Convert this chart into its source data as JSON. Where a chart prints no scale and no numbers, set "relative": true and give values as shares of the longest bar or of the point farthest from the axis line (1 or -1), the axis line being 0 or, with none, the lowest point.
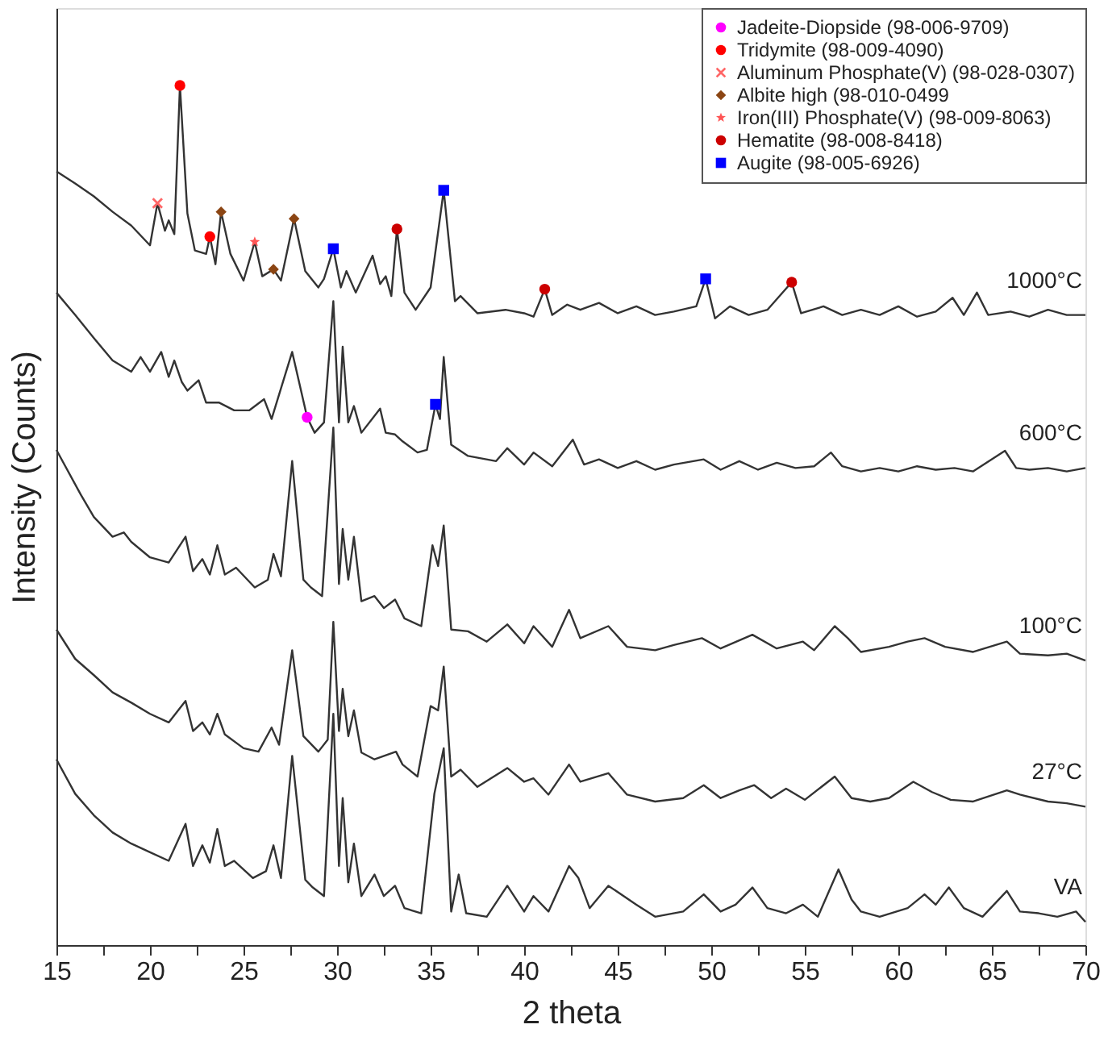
{
  "chart_data": {
    "type": "line",
    "relative": true,
    "xlabel": "2 theta",
    "ylabel": "Intensity (Counts)",
    "xlim": [
      15,
      70
    ],
    "xticks": [
      15,
      {
        "value": 17.5,
        "label": null
      },
      20,
      {
        "value": 22.5,
        "label": null
      },
      25,
      {
        "value": 27.5,
        "label": null
      },
      30,
      {
        "value": 32.5,
        "label": null
      },
      35,
      {
        "value": 37.5,
        "label": null
      },
      40,
      {
        "value": 42.5,
        "label": null
      },
      45,
      {
        "value": 47.5,
        "label": null
      },
      50,
      {
        "value": 52.5,
        "label": null
      },
      55,
      {
        "value": 57.5,
        "label": null
      },
      60,
      {
        "value": 62.5,
        "label": null
      },
      65,
      {
        "value": 67.5,
        "label": null
      },
      70
    ],
    "grid": false,
    "legend": "top right",
    "line_style": "solid",
    "series": [
      {
        "name": "1000°C",
        "color": "#333333",
        "marker": "none",
        "x": [
          15,
          16,
          17,
          18,
          19,
          20,
          20.4,
          20.8,
          21.0,
          21.3,
          21.6,
          22.0,
          22.4,
          23.0,
          23.2,
          23.5,
          23.8,
          24.3,
          25,
          25.6,
          26.0,
          26.6,
          27,
          27.7,
          28.3,
          29,
          29.3,
          29.8,
          30.2,
          30.5,
          31,
          31.9,
          32.3,
          32.6,
          32.9,
          33.2,
          33.6,
          34.2,
          35,
          35.7,
          36.3,
          36.6,
          37.5,
          39,
          40,
          40.5,
          41.1,
          41.5,
          42.3,
          43,
          44,
          45,
          46,
          47,
          48,
          49.2,
          49.7,
          50.2,
          51,
          52,
          53,
          54.3,
          54.8,
          56,
          57,
          58,
          59,
          60,
          61,
          62,
          62.9,
          63.5,
          64.2,
          64.8,
          66,
          67,
          68,
          69,
          70
        ],
        "values": [
          0.9,
          0.886,
          0.871,
          0.853,
          0.837,
          0.814,
          0.863,
          0.831,
          0.843,
          0.827,
          1.0,
          0.851,
          0.808,
          0.804,
          0.824,
          0.792,
          0.853,
          0.804,
          0.773,
          0.818,
          0.778,
          0.786,
          0.773,
          0.845,
          0.784,
          0.765,
          0.775,
          0.81,
          0.765,
          0.784,
          0.759,
          0.802,
          0.769,
          0.778,
          0.755,
          0.833,
          0.759,
          0.739,
          0.765,
          0.878,
          0.749,
          0.755,
          0.735,
          0.739,
          0.735,
          0.731,
          0.763,
          0.733,
          0.745,
          0.739,
          0.747,
          0.735,
          0.743,
          0.733,
          0.737,
          0.743,
          0.775,
          0.729,
          0.743,
          0.733,
          0.739,
          0.771,
          0.735,
          0.743,
          0.733,
          0.739,
          0.733,
          0.743,
          0.731,
          0.737,
          0.753,
          0.733,
          0.759,
          0.733,
          0.737,
          0.731,
          0.739,
          0.733,
          0.733
        ]
      },
      {
        "name": "600°C",
        "color": "#333333",
        "marker": "none",
        "x": [
          15,
          16,
          17,
          18,
          19,
          19.5,
          20,
          20.6,
          21,
          21.3,
          21.7,
          22,
          22.6,
          23,
          23.7,
          24.5,
          25.3,
          26.1,
          26.5,
          27.6,
          28.4,
          28.8,
          29.3,
          29.8,
          30.1,
          30.3,
          30.6,
          30.9,
          31.3,
          32.3,
          32.6,
          33.1,
          33.5,
          34.3,
          34.8,
          35.26,
          35.5,
          35.7,
          36.1,
          37,
          38.5,
          39.1,
          40,
          40.5,
          41.5,
          42.6,
          43.2,
          44,
          45,
          46,
          47,
          48,
          49.6,
          50.5,
          51.5,
          52.5,
          53.5,
          54.5,
          55.5,
          56.4,
          57,
          58,
          59,
          60,
          61,
          62,
          63,
          64,
          65.7,
          66.3,
          67,
          68,
          69,
          70
        ],
        "values": [
          0.759,
          0.733,
          0.706,
          0.68,
          0.667,
          0.684,
          0.667,
          0.69,
          0.661,
          0.68,
          0.655,
          0.645,
          0.657,
          0.631,
          0.631,
          0.622,
          0.622,
          0.635,
          0.612,
          0.69,
          0.614,
          0.596,
          0.608,
          0.749,
          0.608,
          0.696,
          0.608,
          0.627,
          0.596,
          0.624,
          0.596,
          0.594,
          0.586,
          0.573,
          0.576,
          0.629,
          0.612,
          0.684,
          0.582,
          0.569,
          0.563,
          0.578,
          0.559,
          0.573,
          0.557,
          0.588,
          0.559,
          0.565,
          0.555,
          0.563,
          0.553,
          0.559,
          0.565,
          0.553,
          0.563,
          0.553,
          0.561,
          0.555,
          0.557,
          0.573,
          0.557,
          0.551,
          0.555,
          0.551,
          0.557,
          0.553,
          0.555,
          0.551,
          0.575,
          0.555,
          0.553,
          0.555,
          0.551,
          0.555
        ]
      },
      {
        "name": "100°C",
        "color": "#333333",
        "marker": "none",
        "x": [
          15,
          16.3,
          17,
          18,
          18.6,
          19,
          20,
          21,
          21.9,
          22.3,
          22.8,
          23.2,
          23.6,
          24,
          24.6,
          25.6,
          26.3,
          26.6,
          27,
          27.6,
          28.2,
          28.6,
          29.2,
          29.8,
          30.1,
          30.3,
          30.6,
          30.9,
          31.3,
          32,
          32.5,
          33.1,
          33.6,
          34.5,
          35.1,
          35.4,
          35.7,
          36.1,
          37,
          38,
          39.1,
          40,
          40.5,
          41.5,
          42.4,
          43,
          44.5,
          45.5,
          47,
          48,
          49.5,
          50.5,
          52.2,
          53.5,
          54.9,
          55.5,
          56.6,
          57.3,
          58,
          59.5,
          60.5,
          61.4,
          62.5,
          64,
          65.8,
          66.5,
          68,
          69,
          70
        ],
        "values": [
          0.576,
          0.524,
          0.498,
          0.475,
          0.48,
          0.469,
          0.451,
          0.445,
          0.475,
          0.435,
          0.449,
          0.431,
          0.465,
          0.431,
          0.439,
          0.416,
          0.425,
          0.455,
          0.429,
          0.563,
          0.425,
          0.416,
          0.406,
          0.602,
          0.42,
          0.484,
          0.425,
          0.475,
          0.4,
          0.406,
          0.392,
          0.402,
          0.38,
          0.371,
          0.465,
          0.441,
          0.488,
          0.367,
          0.365,
          0.353,
          0.373,
          0.351,
          0.371,
          0.347,
          0.39,
          0.357,
          0.371,
          0.347,
          0.343,
          0.349,
          0.357,
          0.345,
          0.361,
          0.345,
          0.353,
          0.343,
          0.371,
          0.357,
          0.341,
          0.347,
          0.353,
          0.357,
          0.347,
          0.341,
          0.353,
          0.339,
          0.337,
          0.339,
          0.331
        ]
      },
      {
        "name": "27°C",
        "color": "#333333",
        "marker": "none",
        "x": [
          15,
          16,
          17,
          18,
          19,
          20,
          21,
          21.9,
          22.3,
          22.8,
          23.2,
          23.6,
          24,
          25,
          25.8,
          26.5,
          26.9,
          27.6,
          28.2,
          29,
          29.5,
          29.8,
          30.1,
          30.3,
          30.6,
          30.9,
          31.3,
          32,
          33.15,
          33.5,
          34.3,
          35,
          35.4,
          35.7,
          36.1,
          36.6,
          37.5,
          39.1,
          40,
          40.5,
          41.3,
          42.4,
          43,
          44.5,
          45.5,
          47,
          48.5,
          49.6,
          50.5,
          51.5,
          52.3,
          53.2,
          54,
          55,
          56.6,
          57.5,
          58.5,
          59.5,
          60.8,
          61.8,
          62.8,
          64,
          65.8,
          66.5,
          68,
          69,
          70
        ],
        "values": [
          0.367,
          0.333,
          0.314,
          0.294,
          0.282,
          0.269,
          0.259,
          0.284,
          0.249,
          0.259,
          0.245,
          0.269,
          0.245,
          0.229,
          0.225,
          0.253,
          0.233,
          0.343,
          0.243,
          0.225,
          0.239,
          0.376,
          0.249,
          0.298,
          0.243,
          0.273,
          0.224,
          0.216,
          0.225,
          0.21,
          0.196,
          0.278,
          0.273,
          0.324,
          0.196,
          0.204,
          0.184,
          0.206,
          0.19,
          0.194,
          0.175,
          0.21,
          0.19,
          0.2,
          0.175,
          0.167,
          0.171,
          0.186,
          0.171,
          0.18,
          0.186,
          0.171,
          0.182,
          0.169,
          0.196,
          0.171,
          0.167,
          0.171,
          0.19,
          0.178,
          0.169,
          0.167,
          0.18,
          0.175,
          0.167,
          0.165,
          0.161
        ]
      },
      {
        "name": "VA",
        "color": "#333333",
        "marker": "none",
        "x": [
          15,
          16,
          17,
          18,
          19,
          20,
          21,
          21.9,
          22.3,
          22.8,
          23.2,
          23.6,
          24,
          24.5,
          25.5,
          26.2,
          26.6,
          27,
          27.6,
          28.3,
          28.7,
          29.3,
          29.8,
          30.1,
          30.3,
          30.6,
          30.9,
          31.3,
          32,
          32.5,
          33.1,
          33.6,
          34.5,
          35.2,
          35.7,
          36.1,
          36.5,
          36.9,
          38,
          39.1,
          40,
          40.5,
          41.3,
          42.4,
          42.9,
          43.5,
          44.5,
          46,
          47,
          48.5,
          49.6,
          50.5,
          51.3,
          52.2,
          53,
          54,
          54.9,
          55.7,
          56.8,
          57.5,
          58,
          59,
          60.5,
          61.4,
          62,
          62.7,
          63.5,
          64.5,
          65.8,
          66.5,
          67.5,
          68.5,
          69.5,
          70
        ],
        "values": [
          0.216,
          0.176,
          0.151,
          0.131,
          0.118,
          0.108,
          0.098,
          0.141,
          0.092,
          0.116,
          0.096,
          0.135,
          0.092,
          0.098,
          0.078,
          0.086,
          0.116,
          0.078,
          0.22,
          0.076,
          0.067,
          0.057,
          0.269,
          0.092,
          0.171,
          0.073,
          0.118,
          0.057,
          0.082,
          0.057,
          0.069,
          0.043,
          0.037,
          0.176,
          0.229,
          0.039,
          0.082,
          0.037,
          0.033,
          0.069,
          0.039,
          0.057,
          0.039,
          0.092,
          0.078,
          0.043,
          0.069,
          0.047,
          0.033,
          0.039,
          0.059,
          0.039,
          0.047,
          0.067,
          0.043,
          0.037,
          0.047,
          0.033,
          0.088,
          0.053,
          0.039,
          0.033,
          0.043,
          0.059,
          0.047,
          0.067,
          0.043,
          0.033,
          0.063,
          0.039,
          0.037,
          0.033,
          0.039,
          0.027
        ]
      },
      {
        "name": "Jadeite-Diopside (98-006-9709)",
        "type": "scatter",
        "color": "#ff00ff",
        "marker": "circle",
        "x": [
          28.4
        ],
        "values": [
          0.614
        ]
      },
      {
        "name": "Tridymite (98-009-4090)",
        "type": "scatter",
        "color": "#ff0000",
        "marker": "circle",
        "x": [
          21.6,
          23.2
        ],
        "values": [
          1.0,
          0.824
        ]
      },
      {
        "name": "Aluminum Phosphate(V) (98-028-0307)",
        "type": "scatter",
        "color": "#ff6666",
        "marker": "cross",
        "x": [
          20.4
        ],
        "values": [
          0.863
        ]
      },
      {
        "name": "Albite high (98-010-0499",
        "type": "scatter",
        "color": "#8b4513",
        "marker": "diamond",
        "x": [
          23.8,
          26.6,
          27.7
        ],
        "values": [
          0.853,
          0.786,
          0.845
        ]
      },
      {
        "name": "Iron(III) Phosphate(V) (98-009-8063)",
        "type": "scatter",
        "color": "#ff5555",
        "marker": "star",
        "x": [
          25.6
        ],
        "values": [
          0.818
        ]
      },
      {
        "name": "Hematite (98-008-8418)",
        "type": "scatter",
        "color": "#cc0000",
        "marker": "circle",
        "x": [
          33.2,
          41.1,
          54.3
        ],
        "values": [
          0.833,
          0.763,
          0.771
        ]
      },
      {
        "name": "Augite (98-005-6926)",
        "type": "scatter",
        "color": "#0000ff",
        "marker": "square",
        "x": [
          29.8,
          35.7,
          49.7,
          35.26
        ],
        "values": [
          0.81,
          0.878,
          0.775,
          0.629
        ]
      }
    ]
  }
}
